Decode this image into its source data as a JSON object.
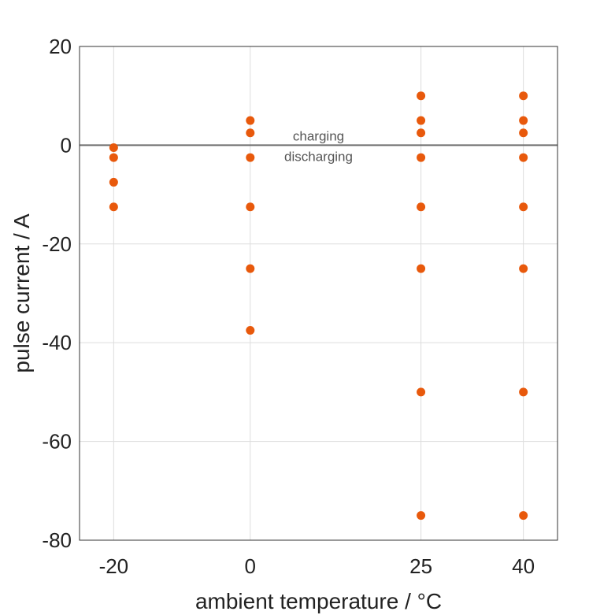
{
  "chart_data": {
    "type": "scatter",
    "title": "",
    "xlabel": "ambient temperature / °C",
    "ylabel": "pulse current / A",
    "x_ticks": [
      -20,
      0,
      25,
      40
    ],
    "y_ticks": [
      20,
      0,
      -20,
      -40,
      -60,
      -80
    ],
    "xlim": [
      -25,
      45
    ],
    "ylim": [
      -80,
      20
    ],
    "grid": true,
    "colors": {
      "points": "#e8590c",
      "zero_line": "#6e6e6e",
      "grid": "#dddddd",
      "frame": "#333333"
    },
    "annotations": {
      "above_line": "charging",
      "below_line": "discharging"
    },
    "points": [
      {
        "x": -20,
        "y": -0.5
      },
      {
        "x": -20,
        "y": -2.5
      },
      {
        "x": -20,
        "y": -7.5
      },
      {
        "x": -20,
        "y": -12.5
      },
      {
        "x": 0,
        "y": 5
      },
      {
        "x": 0,
        "y": 2.5
      },
      {
        "x": 0,
        "y": -2.5
      },
      {
        "x": 0,
        "y": -12.5
      },
      {
        "x": 0,
        "y": -25
      },
      {
        "x": 0,
        "y": -37.5
      },
      {
        "x": 25,
        "y": 10
      },
      {
        "x": 25,
        "y": 5
      },
      {
        "x": 25,
        "y": 2.5
      },
      {
        "x": 25,
        "y": -2.5
      },
      {
        "x": 25,
        "y": -12.5
      },
      {
        "x": 25,
        "y": -25
      },
      {
        "x": 25,
        "y": -50
      },
      {
        "x": 25,
        "y": -75
      },
      {
        "x": 40,
        "y": 10
      },
      {
        "x": 40,
        "y": 5
      },
      {
        "x": 40,
        "y": 2.5
      },
      {
        "x": 40,
        "y": -2.5
      },
      {
        "x": 40,
        "y": -12.5
      },
      {
        "x": 40,
        "y": -25
      },
      {
        "x": 40,
        "y": -50
      },
      {
        "x": 40,
        "y": -75
      }
    ]
  }
}
